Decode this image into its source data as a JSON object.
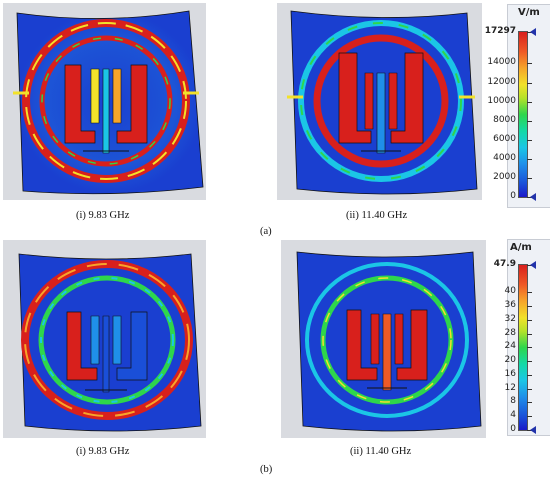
{
  "figure": {
    "row_a_label": "(a)",
    "row_b_label": "(b)",
    "panels": [
      {
        "caption": "(i) 9.83 GHz"
      },
      {
        "caption": "(ii) 11.40 GHz"
      },
      {
        "caption": "(i) 9.83 GHz"
      },
      {
        "caption": "(ii) 11.40 GHz"
      }
    ]
  },
  "colorbar_e": {
    "unit": "V/m",
    "ticks": [
      "17297",
      "14000",
      "12000",
      "10000",
      "8000",
      "6000",
      "4000",
      "2000",
      "0"
    ],
    "values": [
      17297,
      14000,
      12000,
      10000,
      8000,
      6000,
      4000,
      2000,
      0
    ]
  },
  "colorbar_h": {
    "unit": "A/m",
    "ticks": [
      "47.9",
      "40",
      "36",
      "32",
      "28",
      "24",
      "20",
      "16",
      "12",
      "8",
      "4",
      "0"
    ],
    "values": [
      47.9,
      40,
      36,
      32,
      28,
      24,
      20,
      16,
      12,
      8,
      4,
      0
    ]
  },
  "colors": {
    "background_gray": "#d9dbe0",
    "sheet_blue": "#1a3fd0",
    "hot_red": "#d8201c"
  }
}
